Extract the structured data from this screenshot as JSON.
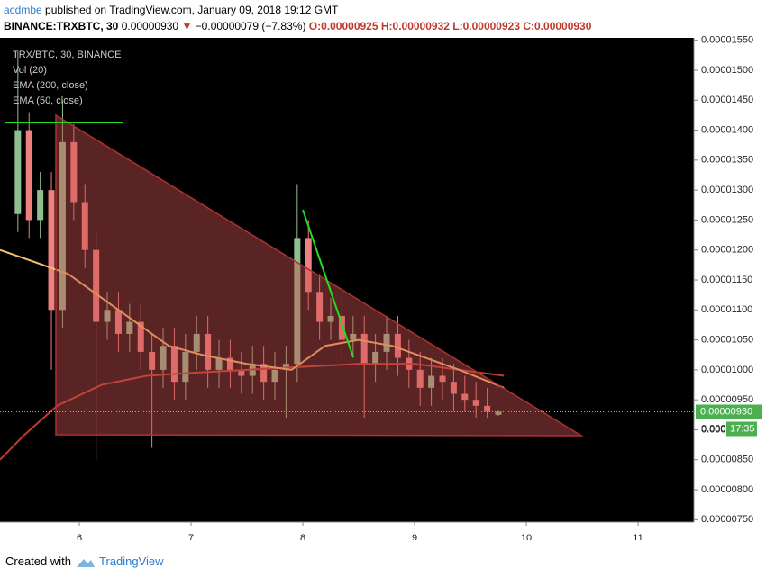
{
  "header": {
    "author": "acdmbe",
    "published": "published on TradingView.com, January 09, 2018 19:12 GMT",
    "symbol": "BINANCE:TRXBTC, 30",
    "price": "0.00000930",
    "arrow": "▼",
    "change": "−0.00000079 (−7.83%)",
    "open": "O:0.00000925",
    "high": "H:0.00000932",
    "low": "L:0.00000923",
    "close": "C:0.00000930"
  },
  "footer": {
    "created": "Created with",
    "brand": "TradingView"
  },
  "chart_data": {
    "type": "candlestick",
    "title": "TRX/BTC, 30, BINANCE",
    "volume_label": "Vol (20)",
    "up_color": "#8fbf8f",
    "down_color": "#f08080",
    "grid": false,
    "xlim": [
      5.29,
      11.5
    ],
    "xticks": [
      6,
      7,
      8,
      9,
      10,
      11
    ],
    "ylim": [
      7.46e-06,
      1.554e-05
    ],
    "yticks": [
      {
        "value": 1.55e-05,
        "label": "0.00001550"
      },
      {
        "value": 1.5e-05,
        "label": "0.00001500"
      },
      {
        "value": 1.45e-05,
        "label": "0.00001450"
      },
      {
        "value": 1.4e-05,
        "label": "0.00001400"
      },
      {
        "value": 1.35e-05,
        "label": "0.00001350"
      },
      {
        "value": 1.3e-05,
        "label": "0.00001300"
      },
      {
        "value": 1.25e-05,
        "label": "0.00001250"
      },
      {
        "value": 1.2e-05,
        "label": "0.00001200"
      },
      {
        "value": 1.15e-05,
        "label": "0.00001150"
      },
      {
        "value": 1.1e-05,
        "label": "0.00001100"
      },
      {
        "value": 1.05e-05,
        "label": "0.00001050"
      },
      {
        "value": 1e-05,
        "label": "0.00001000"
      },
      {
        "value": 9.5e-06,
        "label": "0.00000950"
      },
      {
        "value": 9e-06,
        "label": "0.00000900"
      },
      {
        "value": 8.5e-06,
        "label": "0.00000850"
      },
      {
        "value": 8e-06,
        "label": "0.00000800"
      },
      {
        "value": 7.5e-06,
        "label": "0.00000750"
      }
    ],
    "x": [
      5.45,
      5.55,
      5.65,
      5.75,
      5.85,
      5.95,
      6.05,
      6.15,
      6.25,
      6.35,
      6.45,
      6.55,
      6.65,
      6.75,
      6.85,
      6.95,
      7.05,
      7.15,
      7.25,
      7.35,
      7.45,
      7.55,
      7.65,
      7.75,
      7.85,
      7.95,
      8.05,
      8.15,
      8.25,
      8.35,
      8.45,
      8.55,
      8.65,
      8.75,
      8.85,
      8.95,
      9.05,
      9.15,
      9.25,
      9.35,
      9.45,
      9.55,
      9.65,
      9.75
    ],
    "open": [
      1.26e-05,
      1.4e-05,
      1.25e-05,
      1.3e-05,
      1.1e-05,
      1.38e-05,
      1.28e-05,
      1.2e-05,
      1.08e-05,
      1.1e-05,
      1.06e-05,
      1.08e-05,
      1.03e-05,
      1e-05,
      1.04e-05,
      9.8e-06,
      1.03e-05,
      1.06e-05,
      1e-05,
      1.02e-05,
      1e-05,
      9.9e-06,
      1.01e-05,
      9.8e-06,
      1e-05,
      1.01e-05,
      1.22e-05,
      1.13e-05,
      1.08e-05,
      1.09e-05,
      1.05e-05,
      1.06e-05,
      1.01e-05,
      1.03e-05,
      1.06e-05,
      1.02e-05,
      1e-05,
      9.7e-06,
      9.9e-06,
      9.8e-06,
      9.6e-06,
      9.5e-06,
      9.4e-06,
      9.25e-06
    ],
    "high": [
      1.53e-05,
      1.43e-05,
      1.33e-05,
      1.33e-05,
      1.45e-05,
      1.41e-05,
      1.31e-05,
      1.23e-05,
      1.13e-05,
      1.13e-05,
      1.11e-05,
      1.11e-05,
      1.06e-05,
      1.07e-05,
      1.07e-05,
      1.06e-05,
      1.09e-05,
      1.09e-05,
      1.05e-05,
      1.05e-05,
      1.03e-05,
      1.04e-05,
      1.04e-05,
      1.03e-05,
      1.04e-05,
      1.31e-05,
      1.25e-05,
      1.16e-05,
      1.12e-05,
      1.12e-05,
      1.09e-05,
      1.09e-05,
      1.06e-05,
      1.09e-05,
      1.09e-05,
      1.05e-05,
      1.03e-05,
      1.02e-05,
      1.02e-05,
      1.01e-05,
      9.9e-06,
      9.8e-06,
      9.7e-06,
      9.32e-06
    ],
    "low": [
      1.23e-05,
      1.22e-05,
      1.22e-05,
      1e-05,
      1.07e-05,
      1.25e-05,
      1.17e-05,
      8.5e-06,
      1.05e-05,
      1.03e-05,
      1.03e-05,
      1e-05,
      8.7e-06,
      9.7e-06,
      9.5e-06,
      9.5e-06,
      1e-05,
      9.7e-06,
      9.7e-06,
      9.7e-06,
      9.6e-06,
      9.6e-06,
      9.5e-06,
      9.5e-06,
      9.2e-06,
      9.8e-06,
      1.1e-05,
      1.05e-05,
      1.05e-05,
      1.02e-05,
      1.02e-05,
      9.2e-06,
      9.8e-06,
      1e-05,
      9.9e-06,
      9.7e-06,
      9.4e-06,
      9.4e-06,
      9.5e-06,
      9.3e-06,
      9.3e-06,
      9.2e-06,
      9.2e-06,
      9.23e-06
    ],
    "close": [
      1.4e-05,
      1.25e-05,
      1.3e-05,
      1.1e-05,
      1.38e-05,
      1.28e-05,
      1.2e-05,
      1.08e-05,
      1.1e-05,
      1.06e-05,
      1.08e-05,
      1.03e-05,
      1e-05,
      1.04e-05,
      9.8e-06,
      1.03e-05,
      1.06e-05,
      1e-05,
      1.02e-05,
      1e-05,
      9.9e-06,
      1.01e-05,
      9.8e-06,
      1e-05,
      1.01e-05,
      1.22e-05,
      1.13e-05,
      1.08e-05,
      1.09e-05,
      1.05e-05,
      1.06e-05,
      1.01e-05,
      1.03e-05,
      1.06e-05,
      1.02e-05,
      1e-05,
      9.7e-06,
      9.9e-06,
      9.8e-06,
      9.6e-06,
      9.5e-06,
      9.4e-06,
      9.3e-06,
      9.3e-06
    ],
    "series": [
      {
        "name": "EMA (200, close)",
        "color": "#c0392b",
        "x": [
          5.29,
          5.5,
          5.8,
          6.2,
          6.6,
          7.0,
          7.5,
          8.0,
          8.5,
          9.0,
          9.4,
          9.8
        ],
        "values": [
          8.5e-06,
          8.9e-06,
          9.4e-06,
          9.75e-06,
          9.9e-06,
          9.95e-06,
          1e-05,
          1.005e-05,
          1.01e-05,
          1.01e-05,
          1e-05,
          9.9e-06
        ]
      },
      {
        "name": "EMA (50, close)",
        "color": "#f5c16c",
        "x": [
          5.29,
          5.6,
          5.9,
          6.2,
          6.5,
          6.8,
          7.1,
          7.5,
          7.9,
          8.2,
          8.5,
          8.8,
          9.1,
          9.4,
          9.8
        ],
        "values": [
          1.2e-05,
          1.18e-05,
          1.16e-05,
          1.12e-05,
          1.08e-05,
          1.04e-05,
          1.025e-05,
          1.01e-05,
          1e-05,
          1.04e-05,
          1.05e-05,
          1.04e-05,
          1.02e-05,
          1e-05,
          9.7e-06
        ]
      }
    ],
    "last_price": {
      "value": 9.3e-06,
      "label": "0.00000930"
    },
    "partial_label": "0.000",
    "countdown": "17:35"
  }
}
